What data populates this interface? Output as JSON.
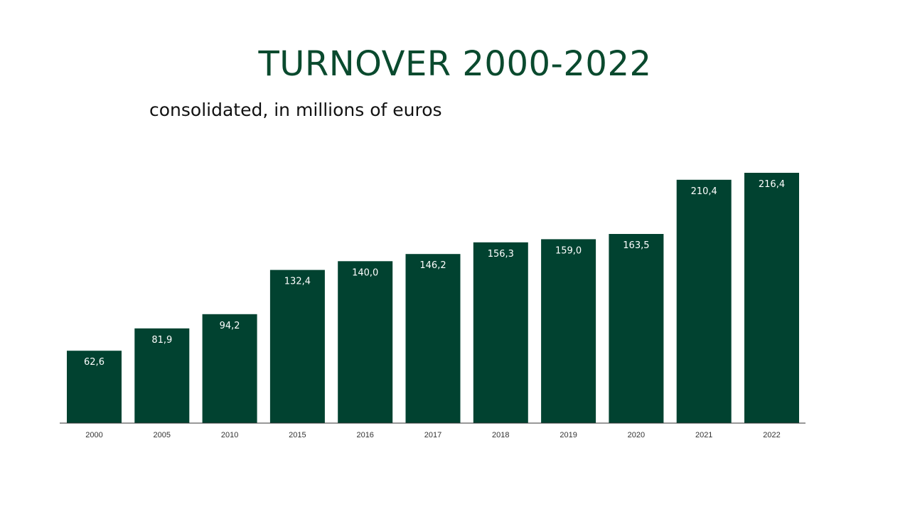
{
  "slide": {
    "title": "TURNOVER 2000-2022",
    "subtitle": "consolidated, in millions of euros"
  },
  "colors": {
    "bar": "#014230",
    "title": "#0a4a2e",
    "axis": "#333333"
  },
  "chart_data": {
    "type": "bar",
    "title": "TURNOVER 2000-2022",
    "subtitle": "consolidated, in millions of euros",
    "categories": [
      "2000",
      "2005",
      "2010",
      "2015",
      "2016",
      "2017",
      "2018",
      "2019",
      "2020",
      "2021",
      "2022"
    ],
    "values": [
      62.6,
      81.9,
      94.2,
      132.4,
      140.0,
      146.2,
      156.3,
      159.0,
      163.5,
      210.4,
      216.4
    ],
    "value_labels": [
      "62,6",
      "81,9",
      "94,2",
      "132,4",
      "140,0",
      "146,2",
      "156,3",
      "159,0",
      "163,5",
      "210,4",
      "216,4"
    ],
    "xlabel": "",
    "ylabel": "",
    "ylim": [
      0,
      216.4
    ],
    "grid": false,
    "legend": "none"
  }
}
